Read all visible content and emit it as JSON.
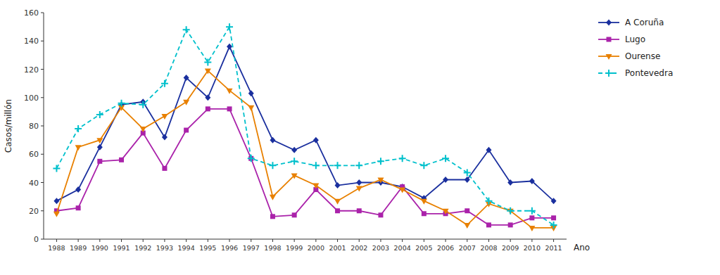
{
  "chart_data": {
    "type": "line",
    "ylabel": "Casos/millón",
    "xlabel": "Ano",
    "x": [
      1988,
      1989,
      1990,
      1991,
      1992,
      1993,
      1994,
      1995,
      1996,
      1997,
      1998,
      1999,
      2000,
      2001,
      2002,
      2003,
      2004,
      2005,
      2006,
      2007,
      2008,
      2009,
      2010,
      2011
    ],
    "series": [
      {
        "name": "A Coruña",
        "color": "#1a2f9e",
        "marker": "diamond",
        "line_style": "solid",
        "values": [
          27,
          35,
          65,
          95,
          97,
          72,
          114,
          100,
          136,
          103,
          70,
          63,
          70,
          38,
          40,
          40,
          37,
          29,
          42,
          42,
          63,
          40,
          41,
          27
        ]
      },
      {
        "name": "Lugo",
        "color": "#aa22aa",
        "marker": "square",
        "line_style": "solid",
        "values": [
          20,
          22,
          55,
          56,
          75,
          50,
          77,
          92,
          92,
          57,
          16,
          17,
          35,
          20,
          20,
          17,
          37,
          18,
          18,
          20,
          10,
          10,
          15,
          15
        ]
      },
      {
        "name": "Ourense",
        "color": "#e88000",
        "marker": "triangle-down",
        "line_style": "solid",
        "values": [
          18,
          65,
          70,
          93,
          78,
          87,
          97,
          119,
          105,
          93,
          30,
          45,
          38,
          27,
          36,
          42,
          35,
          27,
          20,
          10,
          25,
          20,
          8,
          8
        ]
      },
      {
        "name": "Pontevedra",
        "color": "#00c0cc",
        "marker": "plus",
        "line_style": "dashed",
        "values": [
          50,
          78,
          88,
          96,
          95,
          110,
          148,
          125,
          150,
          57,
          52,
          55,
          52,
          52,
          52,
          55,
          57,
          52,
          57,
          47,
          27,
          20,
          20,
          10
        ]
      }
    ],
    "xlim": [
      1987.4,
      2011.6
    ],
    "xticks": [
      1988,
      1989,
      1990,
      1991,
      1992,
      1993,
      1994,
      1995,
      1996,
      1997,
      1998,
      1999,
      2000,
      2001,
      2002,
      2003,
      2004,
      2005,
      2006,
      2007,
      2008,
      2009,
      2010,
      2011
    ],
    "ylim": [
      0,
      160
    ],
    "yticks": [
      0,
      20,
      40,
      60,
      80,
      100,
      120,
      140,
      160
    ],
    "grid": false,
    "legend": "upper right"
  }
}
